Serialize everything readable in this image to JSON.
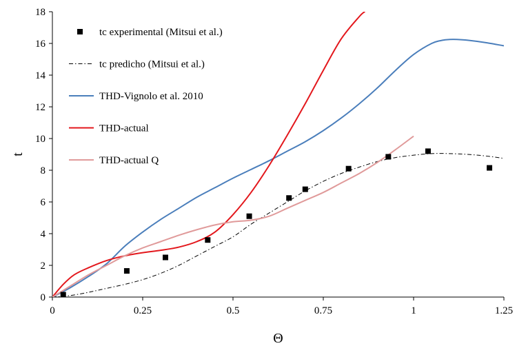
{
  "chart_data": {
    "type": "line",
    "title": "",
    "xlabel": "Θ",
    "ylabel": "t",
    "xlim": [
      0,
      1.25
    ],
    "ylim": [
      0,
      18
    ],
    "x_ticks": [
      "0",
      "0.25",
      "0.5",
      "0.75",
      "1",
      "1.25"
    ],
    "x_tick_values": [
      0,
      0.25,
      0.5,
      0.75,
      1,
      1.25
    ],
    "y_ticks": [
      "0",
      "2",
      "4",
      "6",
      "8",
      "10",
      "12",
      "14",
      "16",
      "18"
    ],
    "y_tick_values": [
      0,
      2,
      4,
      6,
      8,
      10,
      12,
      14,
      16,
      18
    ],
    "grid": false,
    "legend_position": "top-left",
    "series": [
      {
        "name": "tc experimental (Mitsui et al.)",
        "kind": "markers",
        "marker": "square",
        "color": "#000000",
        "x": [
          0.03,
          0.206,
          0.313,
          0.43,
          0.545,
          0.655,
          0.7,
          0.82,
          0.93,
          1.04,
          1.21
        ],
        "y": [
          0.15,
          1.65,
          2.5,
          3.6,
          5.1,
          6.25,
          6.8,
          8.1,
          8.85,
          9.2,
          8.15
        ]
      },
      {
        "name": "tc predicho (Mitsui et al.)",
        "kind": "line",
        "dash": "dashdot",
        "color": "#000000",
        "x": [
          0,
          0.05,
          0.1,
          0.15,
          0.2,
          0.25,
          0.3,
          0.35,
          0.4,
          0.45,
          0.5,
          0.55,
          0.6,
          0.65,
          0.7,
          0.75,
          0.8,
          0.85,
          0.9,
          0.95,
          1.0,
          1.05,
          1.1,
          1.15,
          1.2,
          1.25
        ],
        "y": [
          0,
          0.1,
          0.3,
          0.55,
          0.8,
          1.1,
          1.5,
          2.0,
          2.6,
          3.2,
          3.8,
          4.6,
          5.3,
          6.0,
          6.7,
          7.3,
          7.8,
          8.2,
          8.55,
          8.8,
          8.95,
          9.05,
          9.05,
          9.0,
          8.9,
          8.75
        ]
      },
      {
        "name": "THD-Vignolo et al. 2010",
        "kind": "line",
        "color": "#4a7ebb",
        "x": [
          0,
          0.05,
          0.1,
          0.15,
          0.2,
          0.25,
          0.3,
          0.35,
          0.4,
          0.45,
          0.5,
          0.55,
          0.6,
          0.65,
          0.7,
          0.75,
          0.8,
          0.85,
          0.9,
          0.95,
          1.0,
          1.05,
          1.08,
          1.1,
          1.12,
          1.15,
          1.2,
          1.25
        ],
        "y": [
          0,
          0.6,
          1.3,
          2.1,
          3.2,
          4.1,
          4.9,
          5.6,
          6.3,
          6.9,
          7.5,
          8.05,
          8.6,
          9.2,
          9.8,
          10.5,
          11.3,
          12.2,
          13.2,
          14.3,
          15.3,
          16.0,
          16.2,
          16.25,
          16.25,
          16.2,
          16.05,
          15.85
        ]
      },
      {
        "name": "THD-actual",
        "kind": "line",
        "color": "#e3171c",
        "x": [
          0,
          0.03,
          0.06,
          0.1,
          0.15,
          0.2,
          0.25,
          0.3,
          0.35,
          0.4,
          0.45,
          0.5,
          0.55,
          0.6,
          0.65,
          0.7,
          0.75,
          0.8,
          0.85,
          0.865
        ],
        "y": [
          0,
          0.8,
          1.4,
          1.85,
          2.3,
          2.6,
          2.8,
          2.95,
          3.15,
          3.5,
          4.1,
          5.2,
          6.6,
          8.3,
          10.2,
          12.2,
          14.3,
          16.3,
          17.7,
          18
        ]
      },
      {
        "name": "THD-actual Q",
        "kind": "line",
        "color": "#e09a9a",
        "x": [
          0,
          0.05,
          0.1,
          0.15,
          0.2,
          0.25,
          0.3,
          0.35,
          0.4,
          0.45,
          0.5,
          0.55,
          0.6,
          0.65,
          0.7,
          0.75,
          0.8,
          0.85,
          0.9,
          0.95,
          1.0
        ],
        "y": [
          0,
          0.7,
          1.4,
          2.0,
          2.6,
          3.1,
          3.5,
          3.9,
          4.25,
          4.55,
          4.75,
          4.85,
          5.1,
          5.6,
          6.1,
          6.6,
          7.2,
          7.8,
          8.5,
          9.3,
          10.15
        ]
      }
    ]
  }
}
